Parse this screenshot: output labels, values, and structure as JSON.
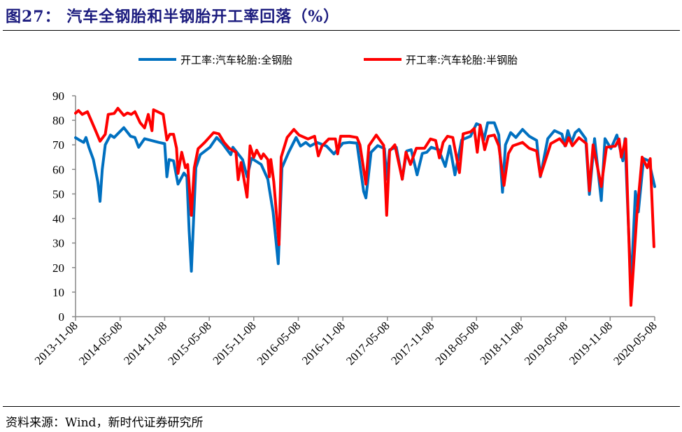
{
  "title": "图27：  汽车全钢胎和半钢胎开工率回落（%）",
  "source": "资料来源：Wind，新时代证券研究所",
  "chart_data": {
    "type": "line",
    "title": "汽车全钢胎和半钢胎开工率回落（%）",
    "xlabel": "",
    "ylabel": "",
    "x_unit": "months since 2013-11-08",
    "xlim": [
      0,
      78
    ],
    "ylim": [
      0,
      90
    ],
    "yticks": [
      "0",
      "10",
      "20",
      "30",
      "40",
      "50",
      "60",
      "70",
      "80",
      "90"
    ],
    "xticks": [
      "2013-11-08",
      "2014-05-08",
      "2014-11-08",
      "2015-05-08",
      "2015-11-08",
      "2016-05-08",
      "2016-11-08",
      "2017-05-08",
      "2017-11-08",
      "2018-05-08",
      "2018-11-08",
      "2019-05-08",
      "2019-11-08",
      "2020-05-08"
    ],
    "legend_position": "top",
    "grid": false,
    "series": [
      {
        "name": "开工率:汽车轮胎:全钢胎",
        "color": "#0070C0",
        "points": [
          [
            0,
            72.9
          ],
          [
            0.5,
            72
          ],
          [
            1.1,
            71
          ],
          [
            1.4,
            73
          ],
          [
            1.8,
            69
          ],
          [
            2.4,
            64
          ],
          [
            3.0,
            55
          ],
          [
            3.3,
            47
          ],
          [
            3.6,
            60
          ],
          [
            4.0,
            70
          ],
          [
            4.7,
            74
          ],
          [
            5.2,
            73
          ],
          [
            6.5,
            77
          ],
          [
            7.4,
            73.5
          ],
          [
            8.0,
            73
          ],
          [
            8.5,
            69
          ],
          [
            9.3,
            72.5
          ],
          [
            11.2,
            71
          ],
          [
            12.0,
            70.5
          ],
          [
            12.3,
            57
          ],
          [
            12.6,
            64
          ],
          [
            13.2,
            63.5
          ],
          [
            13.8,
            54
          ],
          [
            14.6,
            58.5
          ],
          [
            15.0,
            57
          ],
          [
            15.3,
            35
          ],
          [
            15.6,
            18.5
          ],
          [
            15.9,
            40
          ],
          [
            16.2,
            60.7
          ],
          [
            16.8,
            66
          ],
          [
            18.1,
            69
          ],
          [
            19.0,
            73
          ],
          [
            19.8,
            70.5
          ],
          [
            20.9,
            66
          ],
          [
            21.2,
            69
          ],
          [
            22.5,
            64
          ],
          [
            23.1,
            57
          ],
          [
            23.7,
            64.5
          ],
          [
            25.0,
            62
          ],
          [
            25.9,
            56
          ],
          [
            26.1,
            52
          ],
          [
            26.6,
            42.7
          ],
          [
            27.3,
            21.6
          ],
          [
            27.8,
            60.7
          ],
          [
            28.7,
            67
          ],
          [
            29.7,
            73
          ],
          [
            30.3,
            69.5
          ],
          [
            31.0,
            71
          ],
          [
            31.6,
            69.5
          ],
          [
            32.5,
            71
          ],
          [
            33.8,
            69.5
          ],
          [
            34.8,
            66.3
          ],
          [
            36.0,
            70.7
          ],
          [
            36.9,
            71
          ],
          [
            37.9,
            70.7
          ],
          [
            38.8,
            51
          ],
          [
            39.1,
            48.4
          ],
          [
            39.8,
            67
          ],
          [
            40.7,
            69.7
          ],
          [
            41.6,
            68.5
          ],
          [
            41.9,
            56
          ],
          [
            42.3,
            68
          ],
          [
            43.2,
            69
          ],
          [
            44.0,
            56
          ],
          [
            44.6,
            67.5
          ],
          [
            45.2,
            68
          ],
          [
            46.0,
            57.8
          ],
          [
            46.7,
            66.5
          ],
          [
            47.3,
            67
          ],
          [
            47.9,
            69
          ],
          [
            48.9,
            68
          ],
          [
            49.8,
            61.2
          ],
          [
            50.4,
            69.5
          ],
          [
            51.1,
            57.8
          ],
          [
            52.0,
            72
          ],
          [
            53.2,
            73.5
          ],
          [
            54.0,
            78.6
          ],
          [
            54.5,
            78
          ],
          [
            55.0,
            72
          ],
          [
            55.5,
            79
          ],
          [
            56.4,
            79
          ],
          [
            57.0,
            74
          ],
          [
            57.5,
            50.7
          ],
          [
            57.9,
            70
          ],
          [
            58.6,
            75
          ],
          [
            59.3,
            73
          ],
          [
            60.2,
            76.3
          ],
          [
            61.1,
            73.5
          ],
          [
            62.1,
            71.8
          ],
          [
            62.6,
            57
          ],
          [
            63.6,
            72.5
          ],
          [
            64.5,
            75.8
          ],
          [
            65.5,
            74.4
          ],
          [
            65.9,
            69.6
          ],
          [
            66.3,
            75.8
          ],
          [
            66.8,
            71
          ],
          [
            67.3,
            75
          ],
          [
            67.8,
            76.3
          ],
          [
            68.7,
            72.5
          ],
          [
            69.2,
            49.8
          ],
          [
            69.9,
            72.5
          ],
          [
            70.8,
            47.3
          ],
          [
            71.3,
            72.5
          ],
          [
            72.1,
            68.5
          ],
          [
            72.9,
            74
          ],
          [
            73.7,
            63.5
          ],
          [
            74.0,
            72.5
          ],
          [
            74.8,
            11.4
          ],
          [
            75.4,
            51
          ],
          [
            75.8,
            42.7
          ],
          [
            76.5,
            64.4
          ],
          [
            77.2,
            63.5
          ],
          [
            78.0,
            53
          ]
        ]
      },
      {
        "name": "开工率:汽车轮胎:半钢胎",
        "color": "#FF0000",
        "points": [
          [
            0,
            82.9
          ],
          [
            0.4,
            84
          ],
          [
            0.9,
            82.4
          ],
          [
            1.6,
            83.5
          ],
          [
            2.1,
            80
          ],
          [
            2.7,
            75.8
          ],
          [
            3.3,
            71.5
          ],
          [
            4.0,
            74.3
          ],
          [
            4.4,
            82.4
          ],
          [
            5.2,
            82.8
          ],
          [
            5.7,
            84.9
          ],
          [
            6.5,
            82
          ],
          [
            7.0,
            83
          ],
          [
            7.5,
            82.4
          ],
          [
            8.0,
            83.5
          ],
          [
            8.7,
            79
          ],
          [
            9.3,
            76.9
          ],
          [
            9.8,
            82.4
          ],
          [
            10.3,
            75.8
          ],
          [
            10.5,
            84.3
          ],
          [
            11.8,
            82.4
          ],
          [
            12.3,
            72
          ],
          [
            12.7,
            74.3
          ],
          [
            13.2,
            74.3
          ],
          [
            13.6,
            68.6
          ],
          [
            13.8,
            58.4
          ],
          [
            14.3,
            67
          ],
          [
            14.8,
            60.7
          ],
          [
            15.1,
            62
          ],
          [
            15.6,
            41.3
          ],
          [
            16.0,
            60.7
          ],
          [
            16.5,
            68.4
          ],
          [
            17.4,
            71
          ],
          [
            18.6,
            75
          ],
          [
            19.3,
            74.5
          ],
          [
            20.0,
            71
          ],
          [
            20.7,
            68.6
          ],
          [
            21.6,
            67
          ],
          [
            21.9,
            55.8
          ],
          [
            22.3,
            62.8
          ],
          [
            23.1,
            48.7
          ],
          [
            23.5,
            69.6
          ],
          [
            24.0,
            64.9
          ],
          [
            24.4,
            67.8
          ],
          [
            25.0,
            64.4
          ],
          [
            25.3,
            66.3
          ],
          [
            25.9,
            64
          ],
          [
            26.1,
            57
          ],
          [
            26.3,
            64
          ],
          [
            26.7,
            55
          ],
          [
            27.4,
            29.3
          ],
          [
            27.7,
            65
          ],
          [
            28.5,
            73
          ],
          [
            29.4,
            76.3
          ],
          [
            30.1,
            74
          ],
          [
            31.3,
            72.4
          ],
          [
            32.2,
            73.5
          ],
          [
            32.7,
            65.5
          ],
          [
            33.2,
            69.6
          ],
          [
            34.1,
            72.4
          ],
          [
            35.0,
            72.4
          ],
          [
            35.3,
            66.3
          ],
          [
            35.7,
            73.5
          ],
          [
            36.9,
            73.5
          ],
          [
            37.9,
            73
          ],
          [
            38.3,
            70
          ],
          [
            39.1,
            54
          ],
          [
            39.5,
            69.6
          ],
          [
            40.5,
            74
          ],
          [
            41.5,
            69.8
          ],
          [
            41.9,
            41.3
          ],
          [
            42.3,
            67.5
          ],
          [
            43.0,
            70
          ],
          [
            44.0,
            56
          ],
          [
            44.5,
            67
          ],
          [
            45.1,
            62
          ],
          [
            45.9,
            68.6
          ],
          [
            47.0,
            68.6
          ],
          [
            47.8,
            72.4
          ],
          [
            48.5,
            71.8
          ],
          [
            49.0,
            64.7
          ],
          [
            49.5,
            71
          ],
          [
            50.1,
            73.5
          ],
          [
            50.8,
            73
          ],
          [
            51.7,
            58.7
          ],
          [
            52.2,
            74.5
          ],
          [
            53.2,
            75.3
          ],
          [
            53.7,
            76.7
          ],
          [
            54.1,
            67
          ],
          [
            54.5,
            78
          ],
          [
            55.1,
            68
          ],
          [
            55.6,
            73.5
          ],
          [
            56.4,
            74
          ],
          [
            57.0,
            69.6
          ],
          [
            57.7,
            53.5
          ],
          [
            58.3,
            66.5
          ],
          [
            58.9,
            69.6
          ],
          [
            60.2,
            71
          ],
          [
            61.1,
            68.6
          ],
          [
            62.1,
            67.5
          ],
          [
            62.6,
            57.3
          ],
          [
            64.0,
            70.5
          ],
          [
            65.2,
            72.5
          ],
          [
            66.0,
            69.6
          ],
          [
            66.4,
            72.9
          ],
          [
            66.9,
            69.6
          ],
          [
            67.8,
            72.9
          ],
          [
            68.8,
            70.5
          ],
          [
            69.2,
            51.3
          ],
          [
            69.7,
            70
          ],
          [
            70.8,
            53
          ],
          [
            71.5,
            69
          ],
          [
            72.7,
            69.5
          ],
          [
            73.2,
            72.4
          ],
          [
            73.5,
            65
          ],
          [
            74.1,
            72.4
          ],
          [
            74.8,
            4.6
          ],
          [
            75.6,
            41.6
          ],
          [
            76.3,
            65
          ],
          [
            77.0,
            60.7
          ],
          [
            77.4,
            64.4
          ],
          [
            77.9,
            28.5
          ]
        ]
      }
    ]
  }
}
